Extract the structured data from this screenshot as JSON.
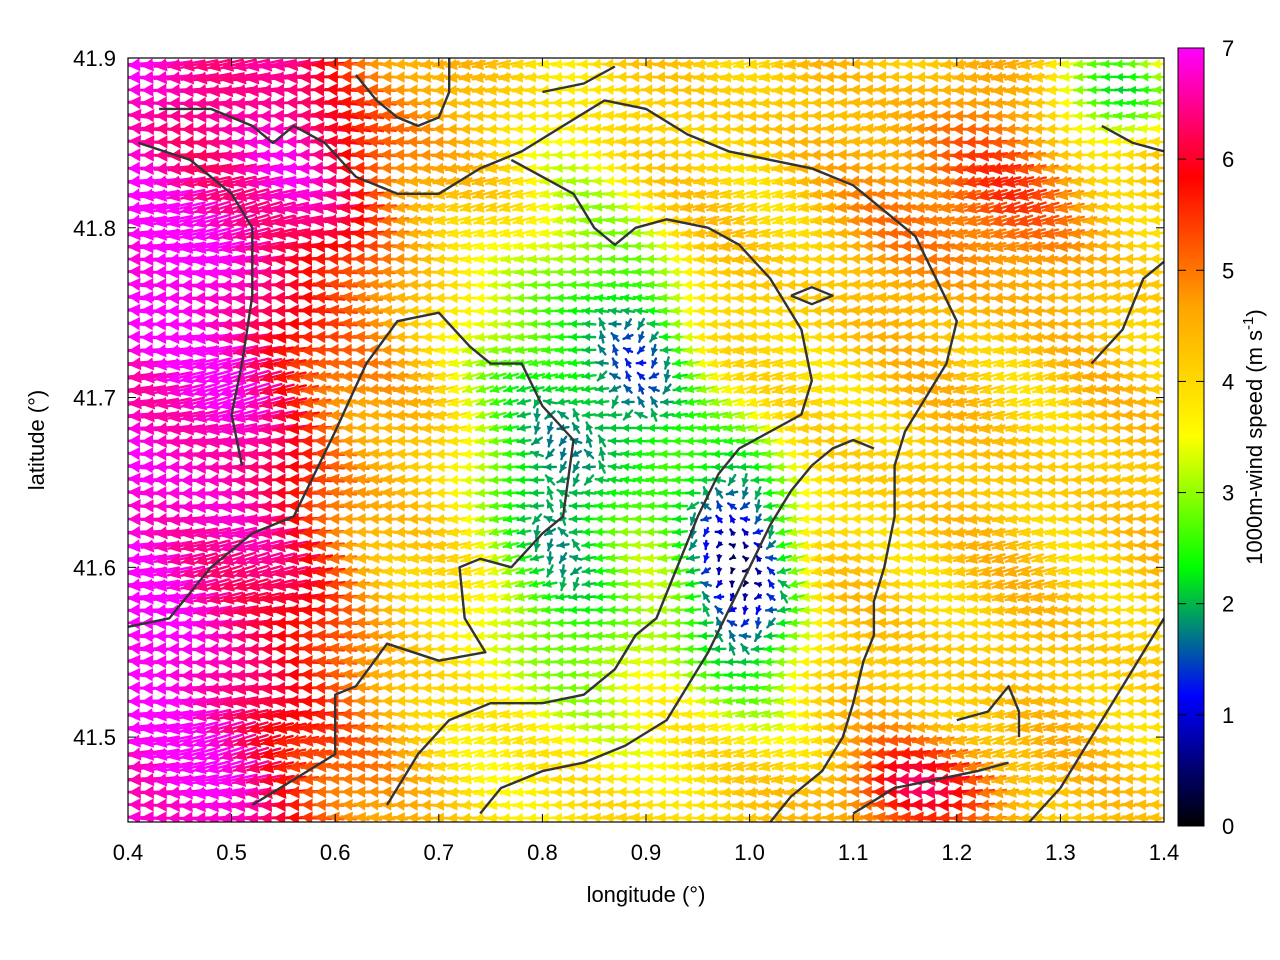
{
  "chart_data": {
    "type": "vector-field",
    "xlabel": "longitude (°)",
    "ylabel": "latitude (°)",
    "colorbar_label": {
      "main": "1000m-wind speed (m s",
      "sup": "-1",
      "close": ")"
    },
    "xlim": [
      0.4,
      1.4
    ],
    "ylim": [
      41.45,
      41.9
    ],
    "x_ticks": [
      "0.4",
      "0.5",
      "0.6",
      "0.7",
      "0.8",
      "0.9",
      "1.0",
      "1.1",
      "1.2",
      "1.3",
      "1.4"
    ],
    "y_ticks": [
      "41.5",
      "41.6",
      "41.7",
      "41.8",
      "41.9"
    ],
    "colorbar_range": [
      0,
      7
    ],
    "colorbar_ticks": [
      "0",
      "1",
      "2",
      "3",
      "4",
      "5",
      "6",
      "7"
    ],
    "colormap": [
      "#000000",
      "#0000ff",
      "#00ff00",
      "#ffff00",
      "#ffa500",
      "#ff0000",
      "#ff00ff"
    ],
    "grid": false,
    "wind_direction": "mostly easterly (arrows pointing west)",
    "speed_regions": [
      {
        "region": "west (lon 0.40-0.55)",
        "speed": 6.8
      },
      {
        "region": "southwest corner",
        "speed": 6.9
      },
      {
        "region": "northwest (lon 0.45-0.70, lat 41.80-41.90)",
        "speed": 5.5
      },
      {
        "region": "center (lon 0.75-0.95)",
        "speed": 2.2
      },
      {
        "region": "calm core (lon 0.90-1.08, lat 41.52-41.70)",
        "speed": 0.8
      },
      {
        "region": "east (lon 1.15-1.40)",
        "speed": 4.5
      },
      {
        "region": "northeast (lon 1.30-1.40, lat 41.85-41.90)",
        "speed": 2.5
      },
      {
        "region": "southeast (lon 1.10-1.25, lat 41.45-41.50)",
        "speed": 6.2
      }
    ],
    "contours": [
      [
        [
          0.4,
          41.565
        ],
        [
          0.44,
          41.57
        ],
        [
          0.48,
          41.6
        ],
        [
          0.52,
          41.62
        ],
        [
          0.56,
          41.63
        ],
        [
          0.6,
          41.68
        ],
        [
          0.63,
          41.72
        ],
        [
          0.66,
          41.745
        ],
        [
          0.7,
          41.75
        ],
        [
          0.73,
          41.73
        ],
        [
          0.75,
          41.72
        ],
        [
          0.78,
          41.72
        ],
        [
          0.8,
          41.695
        ],
        [
          0.83,
          41.675
        ],
        [
          0.82,
          41.63
        ],
        [
          0.8,
          41.62
        ],
        [
          0.77,
          41.6
        ],
        [
          0.74,
          41.605
        ],
        [
          0.72,
          41.6
        ],
        [
          0.725,
          41.57
        ],
        [
          0.745,
          41.55
        ],
        [
          0.7,
          41.545
        ],
        [
          0.65,
          41.555
        ],
        [
          0.62,
          41.53
        ],
        [
          0.6,
          41.525
        ],
        [
          0.6,
          41.49
        ],
        [
          0.56,
          41.475
        ],
        [
          0.52,
          41.46
        ]
      ],
      [
        [
          0.43,
          41.87
        ],
        [
          0.48,
          41.87
        ],
        [
          0.52,
          41.86
        ],
        [
          0.54,
          41.85
        ],
        [
          0.56,
          41.86
        ],
        [
          0.59,
          41.85
        ],
        [
          0.62,
          41.83
        ],
        [
          0.66,
          41.82
        ],
        [
          0.7,
          41.82
        ],
        [
          0.74,
          41.835
        ],
        [
          0.78,
          41.845
        ],
        [
          0.82,
          41.86
        ],
        [
          0.86,
          41.875
        ],
        [
          0.9,
          41.87
        ],
        [
          0.94,
          41.855
        ],
        [
          0.98,
          41.845
        ],
        [
          1.02,
          41.84
        ],
        [
          1.06,
          41.835
        ],
        [
          1.1,
          41.825
        ],
        [
          1.13,
          41.81
        ],
        [
          1.16,
          41.795
        ],
        [
          1.18,
          41.77
        ],
        [
          1.2,
          41.745
        ],
        [
          1.19,
          41.72
        ],
        [
          1.17,
          41.7
        ],
        [
          1.15,
          41.68
        ],
        [
          1.14,
          41.66
        ],
        [
          1.14,
          41.63
        ],
        [
          1.13,
          41.6
        ],
        [
          1.12,
          41.58
        ],
        [
          1.12,
          41.56
        ],
        [
          1.11,
          41.545
        ],
        [
          1.1,
          41.52
        ],
        [
          1.09,
          41.5
        ],
        [
          1.07,
          41.48
        ],
        [
          1.04,
          41.465
        ],
        [
          1.02,
          41.45
        ]
      ],
      [
        [
          0.65,
          41.46
        ],
        [
          0.68,
          41.49
        ],
        [
          0.71,
          41.51
        ],
        [
          0.75,
          41.52
        ],
        [
          0.8,
          41.52
        ],
        [
          0.84,
          41.525
        ],
        [
          0.87,
          41.54
        ],
        [
          0.89,
          41.56
        ],
        [
          0.91,
          41.57
        ],
        [
          0.93,
          41.6
        ],
        [
          0.95,
          41.63
        ],
        [
          0.97,
          41.655
        ],
        [
          0.99,
          41.67
        ],
        [
          1.02,
          41.68
        ],
        [
          1.05,
          41.69
        ],
        [
          1.06,
          41.71
        ],
        [
          1.05,
          41.74
        ],
        [
          1.02,
          41.77
        ],
        [
          0.99,
          41.79
        ],
        [
          0.96,
          41.8
        ],
        [
          0.92,
          41.805
        ],
        [
          0.89,
          41.8
        ],
        [
          0.87,
          41.79
        ],
        [
          0.85,
          41.8
        ],
        [
          0.83,
          41.82
        ],
        [
          0.8,
          41.83
        ],
        [
          0.77,
          41.84
        ]
      ],
      [
        [
          0.74,
          41.455
        ],
        [
          0.76,
          41.47
        ],
        [
          0.8,
          41.48
        ],
        [
          0.84,
          41.485
        ],
        [
          0.88,
          41.495
        ],
        [
          0.92,
          41.51
        ],
        [
          0.94,
          41.53
        ],
        [
          0.96,
          41.55
        ],
        [
          0.98,
          41.575
        ],
        [
          1.0,
          41.6
        ],
        [
          1.02,
          41.625
        ],
        [
          1.04,
          41.645
        ],
        [
          1.06,
          41.66
        ],
        [
          1.08,
          41.67
        ],
        [
          1.1,
          41.675
        ],
        [
          1.12,
          41.67
        ]
      ],
      [
        [
          1.2,
          41.51
        ],
        [
          1.23,
          41.515
        ],
        [
          1.25,
          41.53
        ],
        [
          1.26,
          41.515
        ],
        [
          1.26,
          41.5
        ]
      ],
      [
        [
          1.27,
          41.45
        ],
        [
          1.3,
          41.47
        ],
        [
          1.33,
          41.5
        ],
        [
          1.36,
          41.53
        ],
        [
          1.38,
          41.55
        ],
        [
          1.4,
          41.57
        ]
      ],
      [
        [
          0.41,
          41.85
        ],
        [
          0.46,
          41.84
        ],
        [
          0.5,
          41.82
        ],
        [
          0.52,
          41.8
        ],
        [
          0.52,
          41.76
        ],
        [
          0.51,
          41.72
        ],
        [
          0.5,
          41.69
        ],
        [
          0.51,
          41.66
        ]
      ],
      [
        [
          1.34,
          41.86
        ],
        [
          1.37,
          41.85
        ],
        [
          1.4,
          41.845
        ]
      ],
      [
        [
          1.33,
          41.72
        ],
        [
          1.36,
          41.74
        ],
        [
          1.38,
          41.77
        ],
        [
          1.4,
          41.78
        ]
      ],
      [
        [
          0.62,
          41.89
        ],
        [
          0.64,
          41.875
        ],
        [
          0.66,
          41.865
        ],
        [
          0.68,
          41.86
        ],
        [
          0.7,
          41.865
        ],
        [
          0.71,
          41.88
        ],
        [
          0.71,
          41.9
        ]
      ],
      [
        [
          1.04,
          41.76
        ],
        [
          1.06,
          41.755
        ],
        [
          1.08,
          41.76
        ],
        [
          1.06,
          41.765
        ],
        [
          1.04,
          41.76
        ]
      ],
      [
        [
          0.8,
          41.88
        ],
        [
          0.84,
          41.885
        ],
        [
          0.87,
          41.895
        ]
      ],
      [
        [
          1.1,
          41.455
        ],
        [
          1.14,
          41.47
        ],
        [
          1.18,
          41.475
        ],
        [
          1.22,
          41.48
        ],
        [
          1.25,
          41.485
        ]
      ]
    ]
  }
}
